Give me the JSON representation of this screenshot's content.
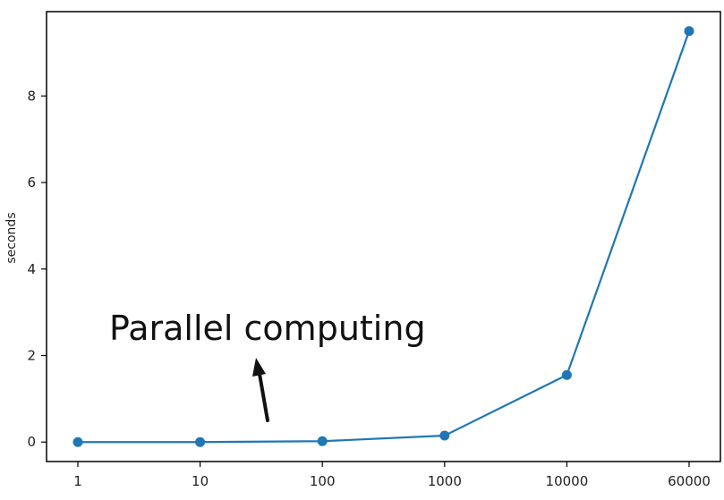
{
  "chart_data": {
    "type": "line",
    "title": "",
    "xlabel": "",
    "ylabel": "seconds",
    "categories": [
      "1",
      "10",
      "100",
      "1000",
      "10000",
      "60000"
    ],
    "series": [
      {
        "values": [
          0.0,
          0.0,
          0.02,
          0.15,
          1.55,
          9.5
        ],
        "color": "#1f77b4",
        "marker": "circle"
      }
    ],
    "ylim": [
      -0.45,
      9.95
    ],
    "yticks": [
      0,
      2,
      4,
      6,
      8
    ],
    "grid": false,
    "annotation": {
      "text": "Parallel computing",
      "arrow": "up"
    }
  }
}
